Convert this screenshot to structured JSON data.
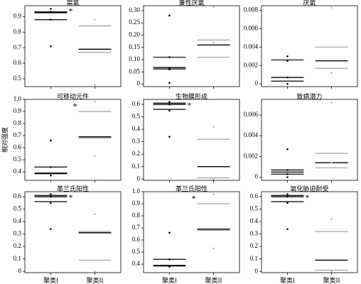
{
  "chart_data": [
    {
      "type": "box",
      "title": "需氧",
      "categories": [
        null,
        null
      ],
      "ylim": [
        0.45,
        0.97
      ],
      "yticks": [
        0.5,
        0.6,
        0.7,
        0.8,
        0.9
      ],
      "groups": [
        {
          "color": "#000000",
          "points": [
            0.95,
            0.93,
            0.88,
            0.71
          ],
          "lower": 0.88,
          "median": 0.925,
          "upper": 0.93
        },
        {
          "color": "#a0a0a0",
          "points": [
            0.88,
            0.46
          ],
          "lower": 0.67,
          "median": 0.69,
          "upper": 0.84
        }
      ],
      "annotations": [
        {
          "text": "*",
          "group": 0,
          "y": 0.94
        }
      ]
    },
    {
      "type": "box",
      "title": "兼性厌氧",
      "categories": [
        null,
        null
      ],
      "ylim": [
        -0.01,
        0.32
      ],
      "yticks": [
        0,
        0.05,
        {
          "value": 0.1,
          "label": "0.10"
        },
        0.15,
        {
          "value": 0.2,
          "label": "0.20"
        },
        0.25,
        {
          "value": 0.3,
          "label": "0.30"
        }
      ],
      "groups": [
        {
          "color": "#000000",
          "points": [
            0.28,
            0.11,
            0.065,
            0.06,
            0.005
          ],
          "lower": 0.062,
          "median": 0.068,
          "upper": 0.11
        },
        {
          "color": "#a0a0a0",
          "points": [
            0.315,
            0.17
          ],
          "lower": 0.11,
          "median": 0.16,
          "upper": 0.18
        }
      ]
    },
    {
      "type": "box",
      "title": "厌氧",
      "categories": [
        null,
        null
      ],
      "ylim": [
        -0.0003,
        0.0085
      ],
      "yticks": [
        0,
        0.002,
        0.004,
        0.006,
        0.008
      ],
      "groups": [
        {
          "color": "#000000",
          "points": [
            0.003,
            0.0025,
            0.0007,
            0
          ],
          "lower": 0.0003,
          "median": 0.0007,
          "upper": 0.0026
        },
        {
          "color": "#a0a0a0",
          "points": [
            0.0083,
            0.0012
          ],
          "lower": 0.0017,
          "median": 0.0025,
          "upper": 0.004
        }
      ]
    },
    {
      "type": "box",
      "title": "可移动元件",
      "ylabel": "相对强度",
      "categories": [
        null,
        null
      ],
      "ylim": [
        0.33,
        1.0
      ],
      "yticks": [
        0.4,
        0.5,
        0.6,
        0.7,
        0.8,
        0.9,
        {
          "value": 1,
          "label": "1.0"
        }
      ],
      "groups": [
        {
          "color": "#000000",
          "points": [
            0.66,
            0.44,
            0.37
          ],
          "lower": 0.385,
          "median": 0.39,
          "upper": 0.44
        },
        {
          "color": "#a0a0a0",
          "points": [
            0.98,
            0.53
          ],
          "lower": 0.68,
          "median": 0.69,
          "upper": 0.9
        }
      ],
      "annotations": [
        {
          "text": "*",
          "group": 1,
          "y": 0.95
        }
      ]
    },
    {
      "type": "box",
      "title": "生物膜形成",
      "categories": [
        null,
        null
      ],
      "ylim": [
        -0.01,
        0.64
      ],
      "yticks": [
        0,
        0.1,
        0.2,
        0.3,
        0.4,
        0.5,
        0.6
      ],
      "groups": [
        {
          "color": "#000000",
          "points": [
            0.62,
            0.6,
            0.55,
            0.34
          ],
          "lower": 0.56,
          "median": 0.6,
          "upper": 0.61
        },
        {
          "color": "#a0a0a0",
          "points": [
            0.42,
            0
          ],
          "lower": 0.01,
          "median": 0.1,
          "upper": 0.32
        }
      ],
      "annotations": [
        {
          "text": "*",
          "group": 0,
          "y": 0.6
        }
      ]
    },
    {
      "type": "box",
      "title": "致病潜力",
      "categories": [
        null,
        null
      ],
      "ylim": [
        -0.0003,
        0.0075
      ],
      "yticks": [
        0,
        0.002,
        0.004,
        0.006
      ],
      "groups": [
        {
          "color": "#000000",
          "points": [
            0.0027,
            0.0007,
            0.0003,
            0
          ],
          "lower": 0.0003,
          "median": 0.0005,
          "upper": 0.0007
        },
        {
          "color": "#a0a0a0",
          "points": [
            0.0072,
            0.0014
          ],
          "lower": 0.0009,
          "median": 0.0014,
          "upper": 0.0023
        }
      ]
    },
    {
      "type": "box",
      "title": "革兰氏阳性",
      "categories": [
        "聚类I",
        "聚类II"
      ],
      "ylim": [
        -0.01,
        0.64
      ],
      "yticks": [
        0,
        0.1,
        0.2,
        0.3,
        0.4,
        0.5,
        0.6
      ],
      "groups": [
        {
          "color": "#000000",
          "points": [
            0.62,
            0.6,
            0.55,
            0.34
          ],
          "lower": 0.56,
          "median": 0.6,
          "upper": 0.61
        },
        {
          "color": "#a0a0a0",
          "points": [
            0.46,
            0
          ],
          "lower": 0.09,
          "median": 0.31,
          "upper": 0.32
        }
      ],
      "annotations": [
        {
          "text": "*",
          "group": 0,
          "y": 0.6
        }
      ]
    },
    {
      "type": "box",
      "title": "革兰氏阳性",
      "categories": [
        "聚类I",
        "聚类II"
      ],
      "ylim": [
        0.33,
        1.0
      ],
      "yticks": [
        0.4,
        0.5,
        0.6,
        0.7,
        0.8,
        0.9,
        {
          "value": 1,
          "label": "1.0"
        }
      ],
      "groups": [
        {
          "color": "#000000",
          "points": [
            0.66,
            0.44,
            0.38
          ],
          "lower": 0.385,
          "median": 0.39,
          "upper": 0.44
        },
        {
          "color": "#a0a0a0",
          "points": [
            0.98,
            0.53
          ],
          "lower": 0.68,
          "median": 0.69,
          "upper": 0.9
        }
      ],
      "annotations": [
        {
          "text": "*",
          "group": 1,
          "y": 0.95
        }
      ]
    },
    {
      "type": "box",
      "title": "氧化胁迫耐受",
      "categories": [
        "聚类I",
        "聚类II"
      ],
      "ylim": [
        -0.01,
        0.64
      ],
      "yticks": [
        0,
        0.1,
        0.2,
        0.3,
        0.4,
        0.5,
        0.6
      ],
      "groups": [
        {
          "color": "#000000",
          "points": [
            0.62,
            0.6,
            0.55,
            0.34
          ],
          "lower": 0.56,
          "median": 0.6,
          "upper": 0.61
        },
        {
          "color": "#a0a0a0",
          "points": [
            0.42,
            0
          ],
          "lower": 0.01,
          "median": 0.09,
          "upper": 0.32
        }
      ],
      "annotations": [
        {
          "text": "*",
          "group": 0,
          "y": 0.6
        }
      ]
    }
  ]
}
